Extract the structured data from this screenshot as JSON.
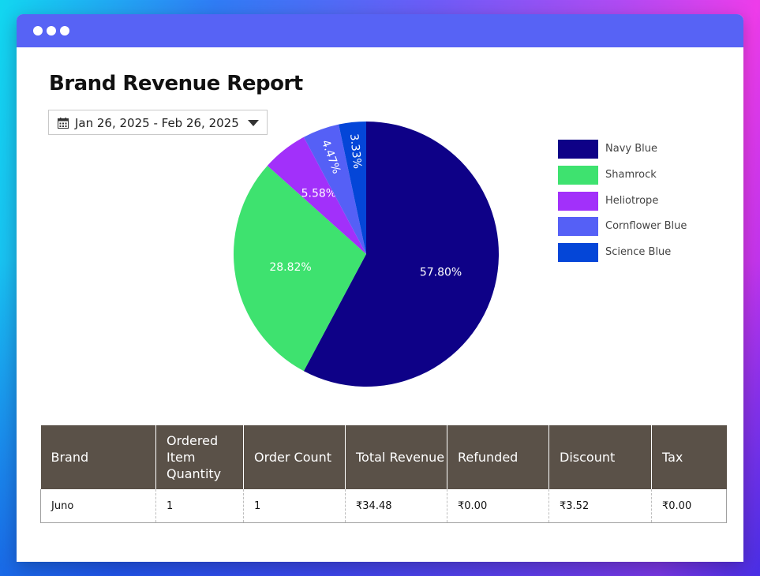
{
  "window": {
    "dots": 3,
    "title": "Brand Revenue Report"
  },
  "date_range": {
    "value": "Jan 26, 2025 - Feb 26, 2025",
    "icon": "calendar-icon"
  },
  "colors": {
    "titlebar": "#5763f5",
    "table_header": "#5a5148"
  },
  "chart_data": {
    "type": "pie",
    "title": "",
    "legend_position": "right",
    "slices": [
      {
        "name": "Navy Blue",
        "value": 57.8,
        "label": "57.80%",
        "color": "#0e0187"
      },
      {
        "name": "Shamrock",
        "value": 28.82,
        "label": "28.82%",
        "color": "#3ee26f"
      },
      {
        "name": "Heliotrope",
        "value": 5.58,
        "label": "5.58%",
        "color": "#a230fa"
      },
      {
        "name": "Cornflower Blue",
        "value": 4.47,
        "label": "4.47%",
        "color": "#5560f6"
      },
      {
        "name": "Science Blue",
        "value": 3.33,
        "label": "3.33%",
        "color": "#0446d8"
      }
    ]
  },
  "table": {
    "headers": [
      "Brand",
      "Ordered Item Quantity",
      "Order Count",
      "Total Revenue",
      "Refunded",
      "Discount",
      "Tax"
    ],
    "rows": [
      [
        "Juno",
        "1",
        "1",
        "₹34.48",
        "₹0.00",
        "₹3.52",
        "₹0.00"
      ]
    ]
  }
}
